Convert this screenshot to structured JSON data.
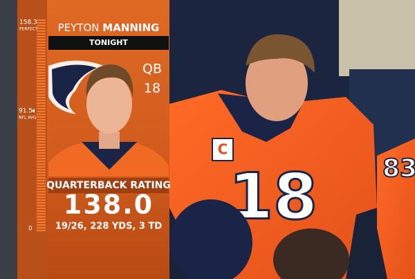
{
  "gauge": {
    "max": {
      "value": "158.3",
      "label": "PERFECT"
    },
    "avg": {
      "value": "91.5",
      "label": "NFL AVG"
    },
    "min": "0"
  },
  "player": {
    "first_name": "PEYTON",
    "last_name": "MANNING",
    "period": "TONIGHT",
    "position": "QB",
    "number": "18"
  },
  "stat": {
    "label": "QUARTERBACK RATING",
    "value": "138.0",
    "line": "19/26, 228 YDS, 3 TD"
  },
  "scene": {
    "jersey_number": "18",
    "captain_patch": "C",
    "teammate_number": "83"
  }
}
